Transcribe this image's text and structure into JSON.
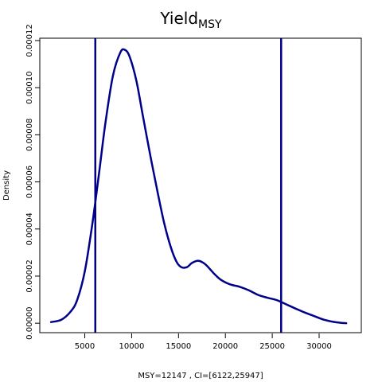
{
  "chart_data": {
    "type": "line",
    "title": {
      "main": "Yield",
      "subscript": "MSY"
    },
    "xlabel": "MSY=12147 , CI=[6122,25947]",
    "ylabel": "Density",
    "xlim": [
      200,
      34500
    ],
    "ylim": [
      -4e-06,
      0.000121
    ],
    "x_ticks": [
      5000,
      10000,
      15000,
      20000,
      25000,
      30000
    ],
    "y_ticks": [
      0.0,
      2e-05,
      4e-05,
      6e-05,
      8e-05,
      0.0001,
      0.00012
    ],
    "y_tick_labels": [
      "0.00000",
      "0.00002",
      "0.00004",
      "0.00006",
      "0.00008",
      "0.00010",
      "0.00012"
    ],
    "grid": false,
    "colors": {
      "curve": "#00008B",
      "vlines": "#00008B",
      "frame": "#000000"
    },
    "series": [
      {
        "x": [
          1400,
          2500,
          3500,
          4200,
          5000,
          5800,
          6500,
          7200,
          8000,
          8800,
          9300,
          9800,
          10500,
          11200,
          12000,
          12800,
          13500,
          14200,
          14800,
          15300,
          15900,
          16400,
          17000,
          17500,
          18000,
          18800,
          19500,
          20500,
          21500,
          22500,
          23500,
          24500,
          25500,
          26500,
          27500,
          28500,
          29500,
          30500,
          31500,
          32300,
          32900
        ],
        "y": [
          5e-07,
          1.5e-06,
          5e-06,
          1e-05,
          2.2e-05,
          4.2e-05,
          6.3e-05,
          8.5e-05,
          0.000105,
          0.000115,
          0.000116,
          0.000113,
          0.000103,
          8.8e-05,
          7.1e-05,
          5.5e-05,
          4.2e-05,
          3.2e-05,
          2.6e-05,
          2.38e-05,
          2.38e-05,
          2.55e-05,
          2.65e-05,
          2.6e-05,
          2.45e-05,
          2.1e-05,
          1.85e-05,
          1.65e-05,
          1.55e-05,
          1.4e-05,
          1.2e-05,
          1.08e-05,
          9.8e-06,
          8e-06,
          6.2e-06,
          4.5e-06,
          3e-06,
          1.5e-06,
          6e-07,
          2e-07,
          0.0
        ]
      }
    ],
    "vlines": [
      6122,
      25947
    ]
  }
}
